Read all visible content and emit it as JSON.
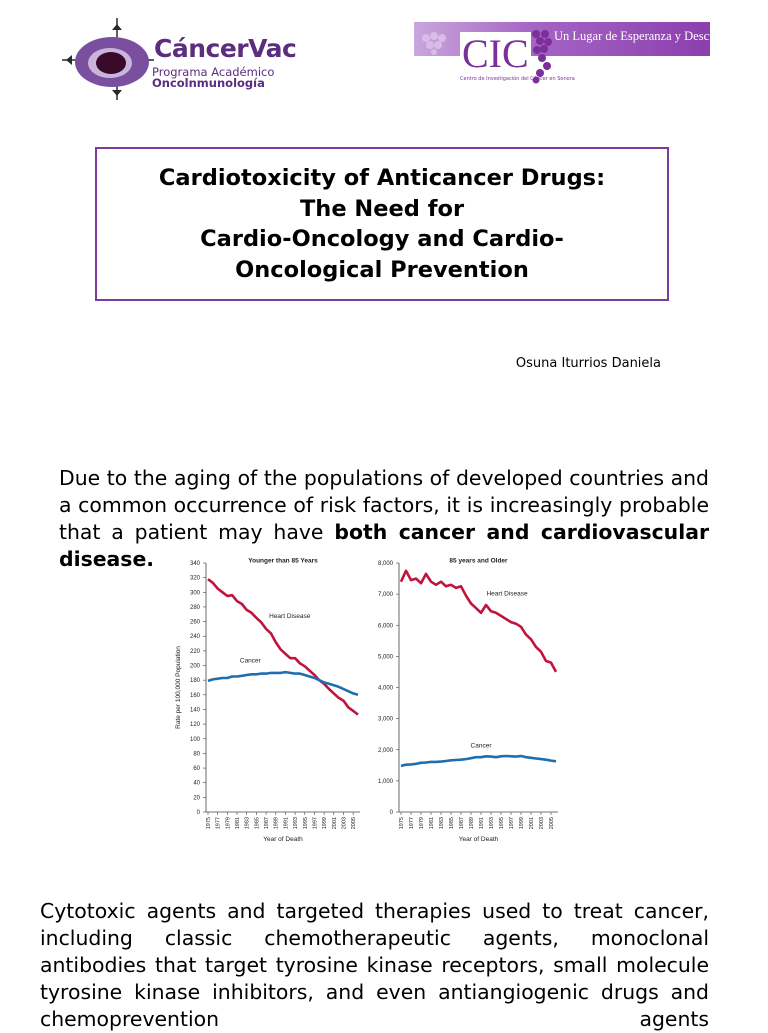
{
  "logos": {
    "left": {
      "brand": "CáncerVac",
      "line1": "Programa Académico",
      "line2": "Oncolnmunología"
    },
    "right": {
      "mark": "CIC",
      "tagline": "Un Lugar de Esperanza y Descubrimiento",
      "subtext": "Centro de Investigación del Cáncer en Sonora"
    }
  },
  "title": "Cardiotoxicity of Anticancer Drugs:\nThe Need for\nCardio-Oncology and Cardio-\nOncological Prevention",
  "author": "Osuna Iturrios Daniela",
  "paragraph1": {
    "text": "Due to the aging of the populations of developed countries and a common occurrence of risk factors, it is increasingly probable that a patient may have",
    "bold": "both cancer and cardiovascular disease."
  },
  "paragraph2": "Cytotoxic agents and targeted therapies  used to treat cancer, including classic chemotherapeutic agents, monoclonal antibodies that target tyrosine kinase receptors, small molecule tyrosine kinase inhibitors, and even antiangiogenic drugs and chemoprevention agents",
  "colors": {
    "heart": "#c0143c",
    "cancer": "#1f6fb0",
    "accent": "#7e3b9e"
  },
  "chart_data": [
    {
      "type": "line",
      "title": "Younger than 85 Years",
      "xlabel": "Year of Death",
      "ylabel": "Rate per 100,000 Population",
      "ylim": [
        0,
        340
      ],
      "yticks": [
        "0",
        "20",
        "40",
        "60",
        "80",
        "100",
        "120",
        "140",
        "160",
        "180",
        "200",
        "220",
        "240",
        "260",
        "280",
        "300",
        "320",
        "340"
      ],
      "xticks": [
        "1975",
        "1977",
        "1979",
        "1981",
        "1983",
        "1985",
        "1987",
        "1989",
        "1991",
        "1993",
        "1995",
        "1997",
        "1999",
        "2001",
        "2003",
        "2005"
      ],
      "x": [
        1975,
        1976,
        1977,
        1978,
        1979,
        1980,
        1981,
        1982,
        1983,
        1984,
        1985,
        1986,
        1987,
        1988,
        1989,
        1990,
        1991,
        1992,
        1993,
        1994,
        1995,
        1996,
        1997,
        1998,
        1999,
        2000,
        2001,
        2002,
        2003,
        2004,
        2005,
        2006
      ],
      "series": [
        {
          "name": "Heart Disease",
          "values": [
            318,
            313,
            305,
            300,
            295,
            296,
            288,
            284,
            276,
            272,
            265,
            259,
            250,
            244,
            232,
            222,
            216,
            210,
            210,
            203,
            199,
            193,
            187,
            180,
            175,
            168,
            162,
            156,
            152,
            143,
            138,
            133
          ]
        },
        {
          "name": "Cancer",
          "values": [
            179,
            181,
            182,
            183,
            183,
            185,
            185,
            186,
            187,
            188,
            188,
            189,
            189,
            190,
            190,
            190,
            191,
            190,
            189,
            189,
            187,
            185,
            183,
            180,
            177,
            175,
            173,
            171,
            168,
            165,
            162,
            160
          ]
        }
      ]
    },
    {
      "type": "line",
      "title": "85 years and Older",
      "xlabel": "Year of Death",
      "ylabel": "",
      "ylim": [
        0,
        8000
      ],
      "yticks": [
        "0",
        "1,000",
        "2,000",
        "3,000",
        "4,000",
        "5,000",
        "6,000",
        "7,000",
        "8,000"
      ],
      "xticks": [
        "1975",
        "1977",
        "1979",
        "1981",
        "1983",
        "1985",
        "1987",
        "1989",
        "1991",
        "1993",
        "1995",
        "1997",
        "1999",
        "2001",
        "2003",
        "2005"
      ],
      "x": [
        1975,
        1976,
        1977,
        1978,
        1979,
        1980,
        1981,
        1982,
        1983,
        1984,
        1985,
        1986,
        1987,
        1988,
        1989,
        1990,
        1991,
        1992,
        1993,
        1994,
        1995,
        1996,
        1997,
        1998,
        1999,
        2000,
        2001,
        2002,
        2003,
        2004,
        2005,
        2006
      ],
      "series": [
        {
          "name": "Heart Disease",
          "values": [
            7400,
            7750,
            7450,
            7500,
            7350,
            7650,
            7400,
            7300,
            7400,
            7250,
            7300,
            7200,
            7250,
            6950,
            6700,
            6550,
            6400,
            6650,
            6450,
            6400,
            6300,
            6200,
            6100,
            6050,
            5950,
            5700,
            5550,
            5300,
            5150,
            4850,
            4800,
            4500
          ]
        },
        {
          "name": "Cancer",
          "values": [
            1480,
            1520,
            1530,
            1550,
            1580,
            1590,
            1610,
            1610,
            1620,
            1640,
            1660,
            1670,
            1680,
            1700,
            1730,
            1760,
            1760,
            1790,
            1780,
            1760,
            1790,
            1800,
            1790,
            1780,
            1800,
            1760,
            1740,
            1720,
            1700,
            1680,
            1650,
            1630
          ]
        }
      ]
    }
  ]
}
